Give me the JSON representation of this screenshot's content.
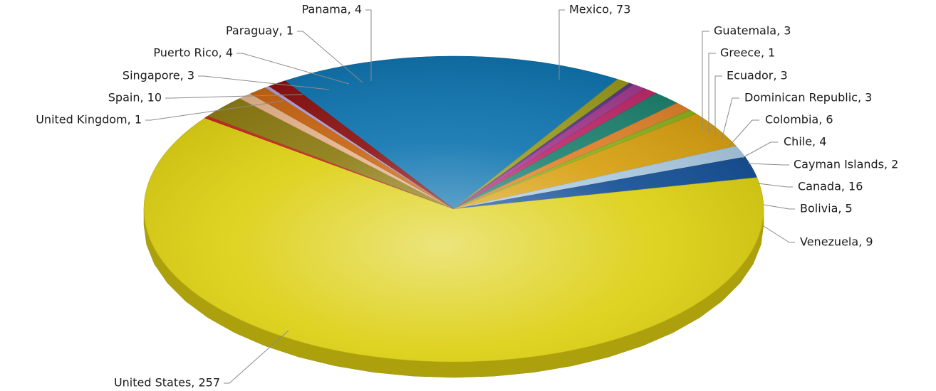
{
  "chart_data": {
    "type": "pie",
    "title": "",
    "slices": [
      {
        "label": "Mexico",
        "value": 73,
        "color": "#0f75b0"
      },
      {
        "label": "Guatemala",
        "value": 3,
        "color": "#9a9a1c"
      },
      {
        "label": "Greece",
        "value": 1,
        "color": "#5a3a8a"
      },
      {
        "label": "Ecuador",
        "value": 3,
        "color": "#a23a8e"
      },
      {
        "label": "Dominican Republic",
        "value": 3,
        "color": "#c02a6a"
      },
      {
        "label": "Colombia",
        "value": 6,
        "color": "#1e8270"
      },
      {
        "label": "Chile",
        "value": 4,
        "color": "#e0822a"
      },
      {
        "label": "Cayman Islands",
        "value": 2,
        "color": "#8ab21c"
      },
      {
        "label": "Canada",
        "value": 16,
        "color": "#d8a010"
      },
      {
        "label": "Bolivia",
        "value": 5,
        "color": "#a8c8e0"
      },
      {
        "label": "Venezuela",
        "value": 9,
        "color": "#124e94"
      },
      {
        "label": "United States",
        "value": 257,
        "color": "#dccf10"
      },
      {
        "label": "United Kingdom",
        "value": 1,
        "color": "#d02020"
      },
      {
        "label": "Spain",
        "value": 10,
        "color": "#8c7a10"
      },
      {
        "label": "Singapore",
        "value": 3,
        "color": "#e6b48c"
      },
      {
        "label": "Puerto Rico",
        "value": 4,
        "color": "#c86410"
      },
      {
        "label": "Paraguay",
        "value": 1,
        "color": "#b4a0d2"
      },
      {
        "label": "Panama",
        "value": 4,
        "color": "#8c1010"
      }
    ],
    "label_format": "{label}, {value}",
    "legend": "none",
    "style": "3d-tilted"
  }
}
